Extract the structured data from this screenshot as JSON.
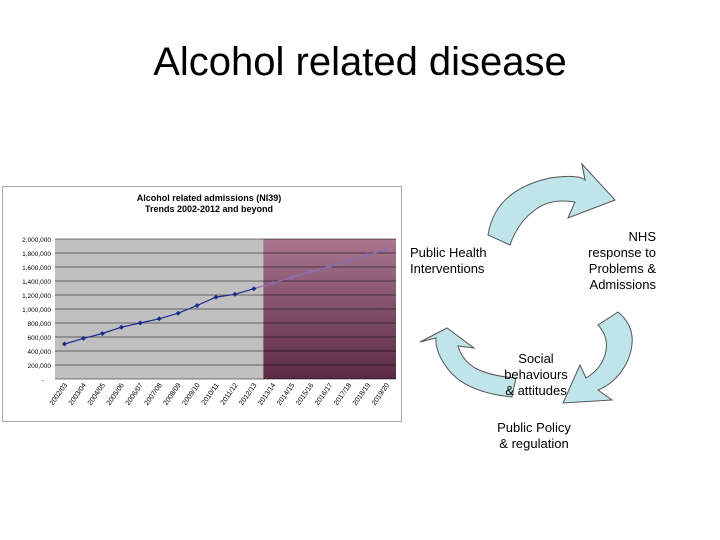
{
  "slide": {
    "title": "Alcohol related disease"
  },
  "chart_data": {
    "type": "line",
    "title": "Alcohol related admissions (NI39)",
    "subtitle": "Trends 2002-2012 and beyond",
    "categories": [
      "2002/03",
      "2003/04",
      "2004/05",
      "2005/06",
      "2006/07",
      "2007/08",
      "2008/09",
      "2009/10",
      "2010/11",
      "2011/12",
      "2012/13",
      "2013/14",
      "2014/15",
      "2015/16",
      "2016/17",
      "2017/18",
      "2018/19",
      "2019/20"
    ],
    "series": [
      {
        "values": [
          500000,
          580000,
          650000,
          740000,
          800000,
          860000,
          940000,
          1050000,
          1170000,
          1210000,
          1290000,
          1370000,
          1450000,
          1530000,
          1610000,
          1690000,
          1770000,
          1850000
        ]
      }
    ],
    "ytick_labels": [
      "2,000,000",
      "1,800,000",
      "1,600,000",
      "1,400,000",
      "1,200,000",
      "1,000,000",
      "800,000",
      "600,000",
      "400,000",
      "200,000",
      "-"
    ],
    "ylim": [
      0,
      2000000
    ],
    "grid": true,
    "projection_start_index": 11,
    "colors": {
      "plot_bg": "#c0c0c0",
      "projection_bg_top": "#a9758f",
      "projection_bg_bottom": "#5a2a45",
      "actual_line": "#1a2b8c",
      "projected_line": "#8a6fb0"
    }
  },
  "cycle": {
    "public_health": "Public Health\nInterventions",
    "nhs": "NHS\nresponse to\nProblems &\nAdmissions",
    "social": "Social\nbehaviours\n& attitudes",
    "policy": "Public Policy\n& regulation",
    "arrow_color": "#bfe4ea",
    "arrow_stroke": "#555555"
  }
}
